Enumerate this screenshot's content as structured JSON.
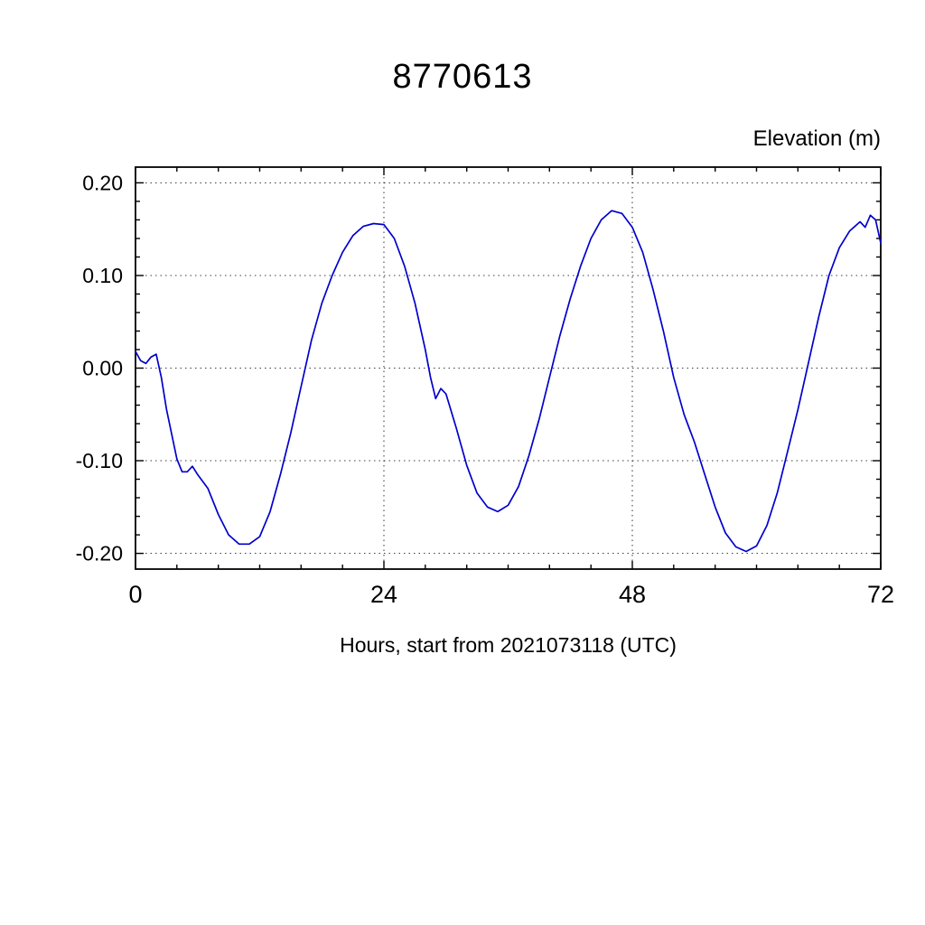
{
  "page": {
    "title": "8770613",
    "ylabel": "Elevation (m)",
    "xlabel": "Hours, start from 2021073118 (UTC)"
  },
  "chart_data": {
    "type": "line",
    "title": "8770613",
    "xlabel": "Hours, start from 2021073118 (UTC)",
    "ylabel": "Elevation (m)",
    "xlim": [
      0,
      72
    ],
    "ylim": [
      -0.217,
      0.217
    ],
    "xticks": [
      0,
      24,
      48,
      72
    ],
    "xtick_labels": [
      "0",
      "24",
      "48",
      "72"
    ],
    "x_minor_tick_step": 4,
    "yticks": [
      0.2,
      0.1,
      0.0,
      -0.1,
      -0.2
    ],
    "ytick_labels": [
      "0.20",
      "0.10",
      "0.00",
      "-0.10",
      "-0.20"
    ],
    "y_minor_tick_step": 0.02,
    "grid": "dotted",
    "legend": "none",
    "line_color": "#0000cc",
    "series": [
      {
        "name": "elevation",
        "x": [
          0,
          0.5,
          1,
          1.5,
          2,
          2.5,
          3,
          4,
          4.5,
          5,
          5.5,
          6,
          7,
          8,
          9,
          10,
          11,
          12,
          13,
          14,
          15,
          16,
          17,
          18,
          19,
          20,
          21,
          22,
          23,
          24,
          25,
          26,
          27,
          28,
          28.5,
          29,
          29.5,
          30,
          31,
          32,
          33,
          34,
          35,
          36,
          37,
          38,
          39,
          40,
          41,
          42,
          43,
          44,
          45,
          46,
          47,
          48,
          49,
          50,
          51,
          52,
          53,
          54,
          55,
          56,
          57,
          58,
          59,
          60,
          61,
          62,
          63,
          64,
          65,
          66,
          67,
          68,
          69,
          70,
          70.5,
          71,
          71.5,
          72
        ],
        "y": [
          0.018,
          0.008,
          0.005,
          0.012,
          0.015,
          -0.01,
          -0.045,
          -0.098,
          -0.112,
          -0.112,
          -0.106,
          -0.115,
          -0.13,
          -0.158,
          -0.18,
          -0.19,
          -0.19,
          -0.182,
          -0.155,
          -0.115,
          -0.07,
          -0.02,
          0.03,
          0.07,
          0.1,
          0.125,
          0.143,
          0.153,
          0.156,
          0.155,
          0.14,
          0.11,
          0.07,
          0.02,
          -0.01,
          -0.033,
          -0.022,
          -0.028,
          -0.065,
          -0.105,
          -0.135,
          -0.15,
          -0.155,
          -0.148,
          -0.128,
          -0.095,
          -0.055,
          -0.01,
          0.035,
          0.075,
          0.11,
          0.14,
          0.16,
          0.17,
          0.167,
          0.152,
          0.125,
          0.085,
          0.04,
          -0.01,
          -0.05,
          -0.08,
          -0.115,
          -0.15,
          -0.178,
          -0.193,
          -0.198,
          -0.192,
          -0.17,
          -0.135,
          -0.09,
          -0.045,
          0.005,
          0.055,
          0.1,
          0.13,
          0.148,
          0.158,
          0.152,
          0.165,
          0.16,
          0.135
        ]
      }
    ]
  }
}
